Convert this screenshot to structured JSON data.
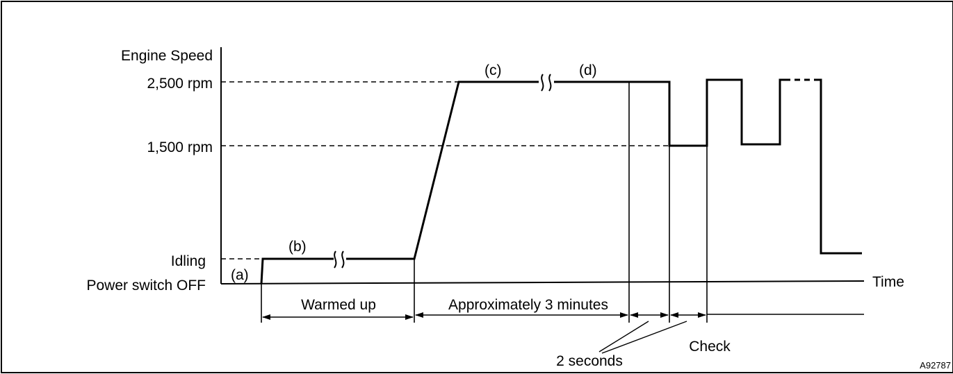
{
  "diagram": {
    "y_axis_title": "Engine Speed",
    "levels": {
      "rpm_2500": "2,500 rpm",
      "rpm_1500": "1,500 rpm",
      "idling": "Idling",
      "power_off": "Power switch OFF"
    },
    "x_axis_title": "Time",
    "step_labels": {
      "a": "(a)",
      "b": "(b)",
      "c": "(c)",
      "d": "(d)"
    },
    "interval_labels": {
      "warmed_up": "Warmed up",
      "approx_3_min": "Approximately 3 minutes",
      "two_seconds": "2 seconds",
      "check": "Check"
    },
    "figure_id": "A92787"
  }
}
